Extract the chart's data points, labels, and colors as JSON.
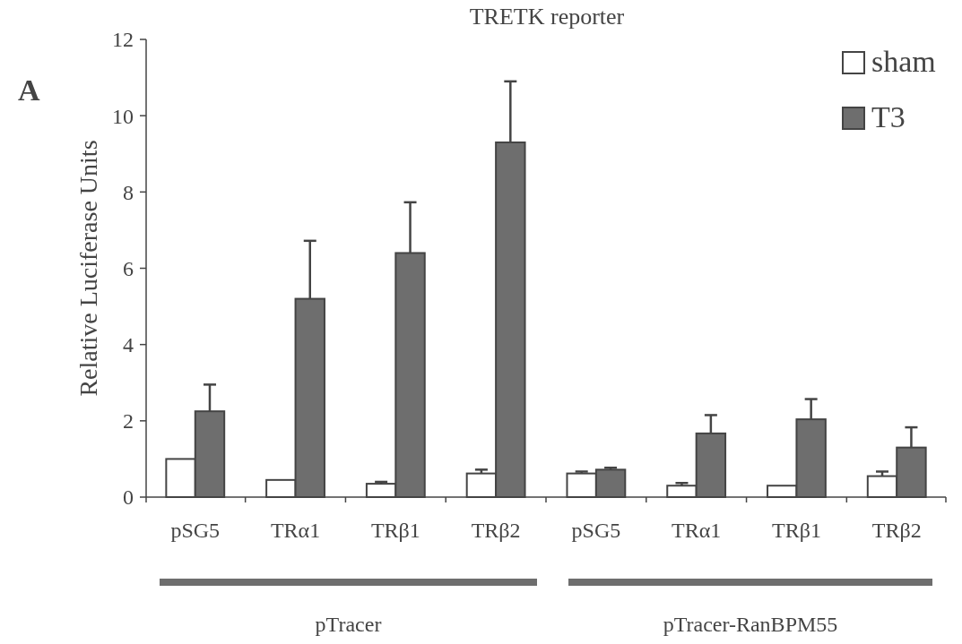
{
  "chart_data": {
    "type": "bar",
    "title": "TRETK reporter",
    "ylabel": "Relative Luciferase Units",
    "categories": [
      "pSG5",
      "TRα1",
      "TRβ1",
      "TRβ2",
      "pSG5",
      "TRα1",
      "TRβ1",
      "TRβ2"
    ],
    "series": [
      {
        "name": "sham",
        "color": "#ffffff",
        "values": [
          1.0,
          0.45,
          0.35,
          0.62,
          0.62,
          0.3,
          0.3,
          0.55
        ],
        "errors": [
          null,
          null,
          [
            0.35,
            0.4
          ],
          [
            0.62,
            0.72
          ],
          [
            0.62,
            0.67
          ],
          [
            0.3,
            0.37
          ],
          null,
          [
            0.55,
            0.67
          ]
        ]
      },
      {
        "name": "T3",
        "color": "#6e6e6e",
        "values": [
          2.25,
          5.2,
          6.4,
          9.3,
          0.72,
          1.67,
          2.04,
          1.3
        ],
        "errors": [
          [
            2.25,
            2.95
          ],
          [
            5.2,
            6.72
          ],
          [
            6.4,
            7.73
          ],
          [
            9.3,
            10.9
          ],
          [
            0.72,
            0.77
          ],
          [
            1.67,
            2.15
          ],
          [
            2.04,
            2.57
          ],
          [
            1.3,
            1.83
          ]
        ]
      }
    ],
    "ylim": [
      0,
      12
    ],
    "yticks": [
      0,
      2,
      4,
      6,
      8,
      10,
      12
    ],
    "grid": false,
    "legend": "top right",
    "annotations": [
      "A",
      "pTracer",
      "pTracer-RanBPM55"
    ]
  }
}
